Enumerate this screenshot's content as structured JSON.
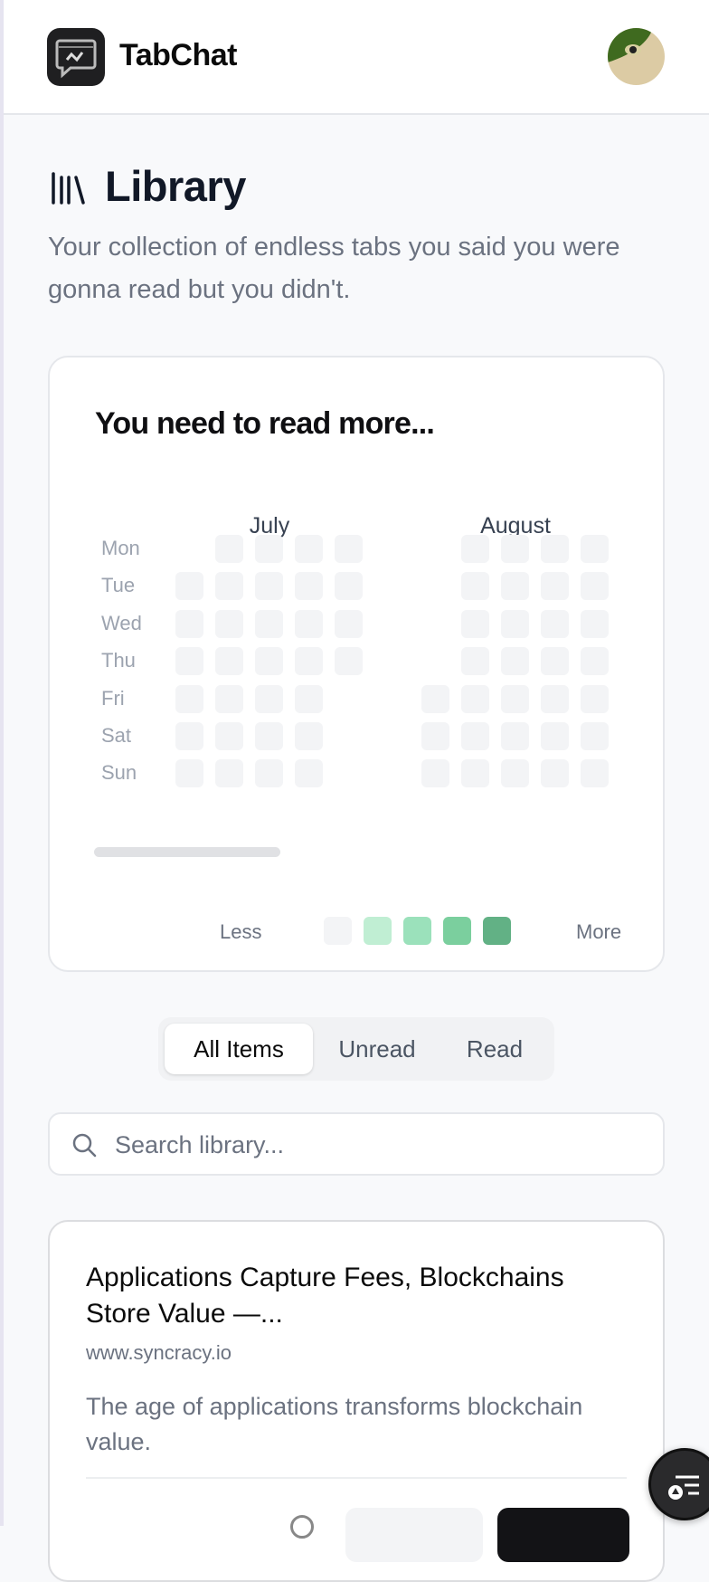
{
  "app": {
    "name": "TabChat"
  },
  "page": {
    "title": "Library",
    "subtitle": "Your collection of endless tabs you said you were gonna read but you didn't."
  },
  "activity": {
    "title": "You need to read more...",
    "months": [
      "July",
      "August"
    ],
    "weekdays": [
      "Mon",
      "Tue",
      "Wed",
      "Thu",
      "Fri",
      "Sat",
      "Sun"
    ],
    "legend": {
      "less": "Less",
      "more": "More",
      "levels": [
        "#f3f4f6",
        "#c0eed3",
        "#9be1bb",
        "#7bcf9e",
        "#62b185"
      ]
    },
    "all_days_level": 0
  },
  "tabs": [
    {
      "label": "All Items",
      "active": true
    },
    {
      "label": "Unread",
      "active": false
    },
    {
      "label": "Read",
      "active": false
    }
  ],
  "search": {
    "placeholder": "Search library..."
  },
  "items": [
    {
      "title": "Applications Capture Fees, Blockchains Store Value —...",
      "url": "www.syncracy.io",
      "description": "The age of applications transforms blockchain value."
    }
  ]
}
